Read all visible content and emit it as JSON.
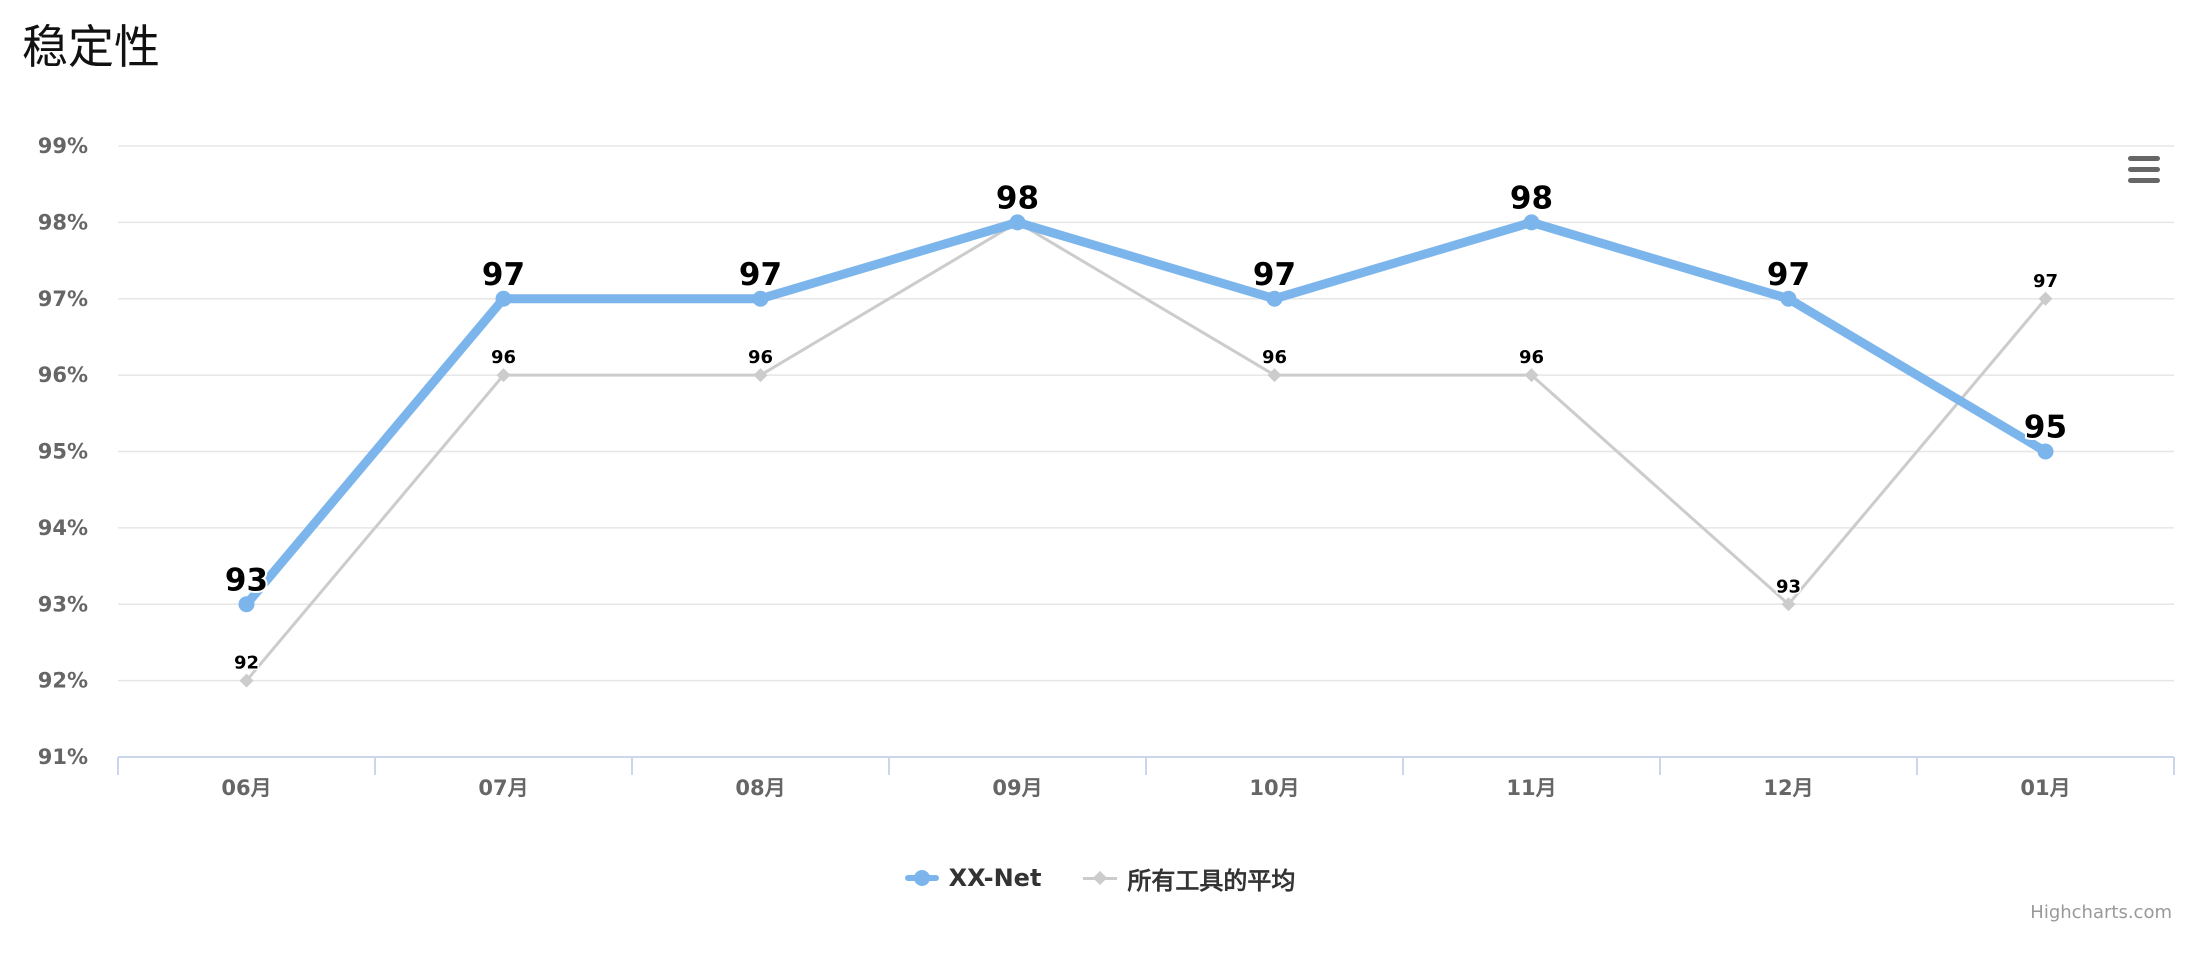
{
  "chart_data": {
    "type": "line",
    "title": "稳定性",
    "categories": [
      "06月",
      "07月",
      "08月",
      "09月",
      "10月",
      "11月",
      "12月",
      "01月"
    ],
    "y_tick_labels": [
      "91%",
      "92%",
      "93%",
      "94%",
      "95%",
      "96%",
      "97%",
      "98%",
      "99%"
    ],
    "ylim": [
      91,
      99
    ],
    "grid": true,
    "legend_position": "bottom-center",
    "series": [
      {
        "name": "XX-Net",
        "values": [
          93,
          97,
          97,
          98,
          97,
          98,
          97,
          95
        ],
        "color": "#7cb5ec",
        "marker": "circle"
      },
      {
        "name": "所有工具的平均",
        "values": [
          92,
          96,
          96,
          98,
          96,
          96,
          93,
          97
        ],
        "color": "#cccccc",
        "marker": "diamond"
      }
    ]
  },
  "menu": {
    "icon": "hamburger-menu-icon"
  },
  "credits": {
    "text": "Highcharts.com"
  },
  "colors": {
    "grid": "#e6e6e6",
    "axis": "#ccd6eb",
    "tick_label": "#666666",
    "data_label": "#000000"
  }
}
